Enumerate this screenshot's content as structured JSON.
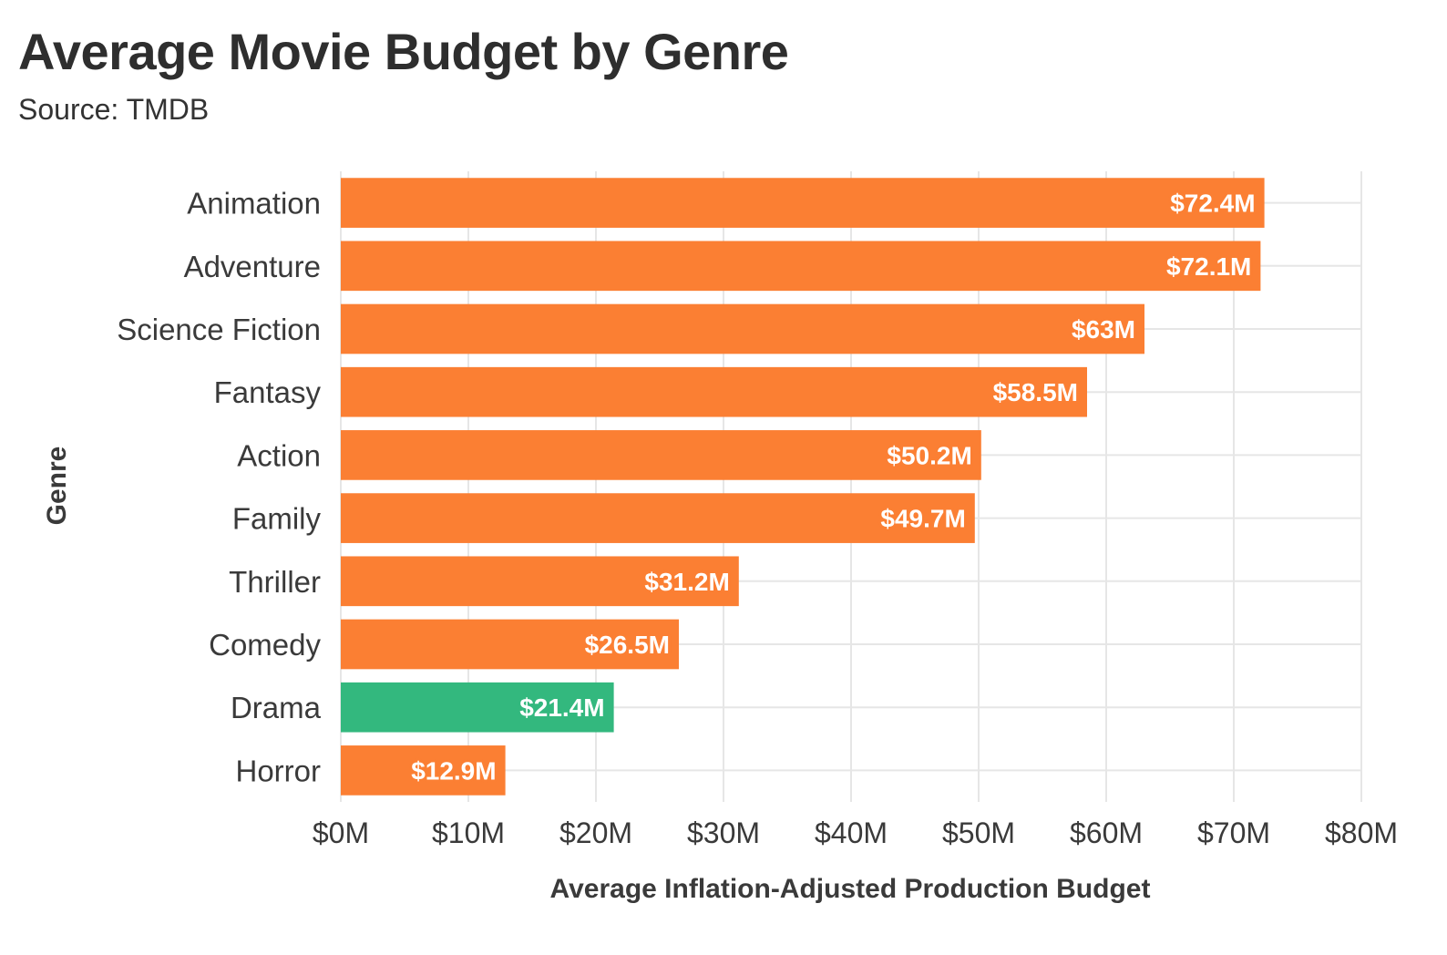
{
  "chart_data": {
    "type": "bar",
    "orientation": "horizontal",
    "title": "Average Movie Budget by Genre",
    "subtitle": "Source: TMDB",
    "xlabel": "Average Inflation-Adjusted Production Budget",
    "ylabel": "Genre",
    "xlim": [
      0,
      80
    ],
    "x_ticks": [
      0,
      10,
      20,
      30,
      40,
      50,
      60,
      70,
      80
    ],
    "x_tick_labels": [
      "$0M",
      "$10M",
      "$20M",
      "$30M",
      "$40M",
      "$50M",
      "$60M",
      "$70M",
      "$80M"
    ],
    "grid": true,
    "categories": [
      "Animation",
      "Adventure",
      "Science Fiction",
      "Fantasy",
      "Action",
      "Family",
      "Thriller",
      "Comedy",
      "Drama",
      "Horror"
    ],
    "values": [
      72.4,
      72.1,
      63,
      58.5,
      50.2,
      49.7,
      31.2,
      26.5,
      21.4,
      12.9
    ],
    "value_labels": [
      "$72.4M",
      "$72.1M",
      "$63M",
      "$58.5M",
      "$50.2M",
      "$49.7M",
      "$31.2M",
      "$26.5M",
      "$21.4M",
      "$12.9M"
    ],
    "highlight_category": "Drama",
    "colors": {
      "default": "#fb7f33",
      "highlight": "#33b87e",
      "grid": "#e6e6e6"
    }
  }
}
